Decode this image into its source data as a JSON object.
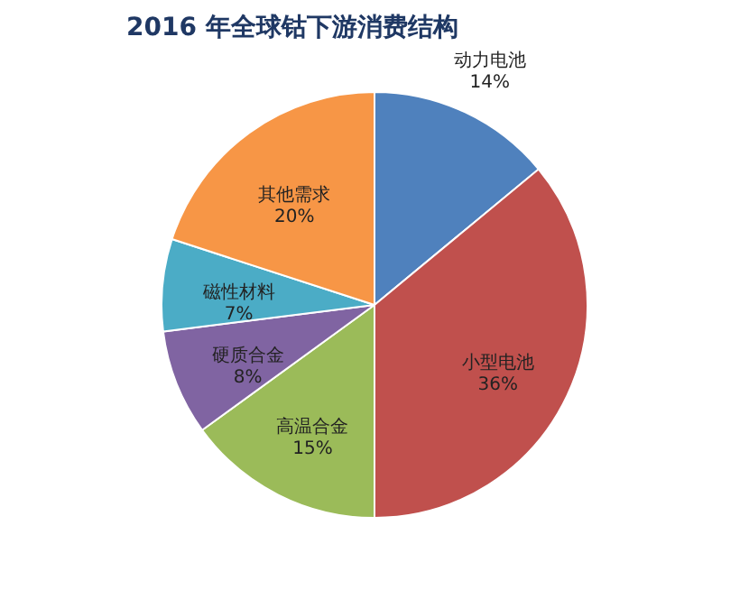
{
  "chart_data": {
    "type": "pie",
    "title": "2016 年全球钴下游消费结构",
    "categories": [
      "动力电池",
      "小型电池",
      "高温合金",
      "硬质合金",
      "磁性材料",
      "其他需求"
    ],
    "values": [
      14,
      36,
      15,
      8,
      7,
      20
    ],
    "value_labels": [
      "14%",
      "36%",
      "15%",
      "8%",
      "7%",
      "20%"
    ],
    "colors": [
      "#4f81bd",
      "#c0504d",
      "#9bbb59",
      "#8064a2",
      "#4bacc6",
      "#f79646"
    ],
    "legend": false
  }
}
